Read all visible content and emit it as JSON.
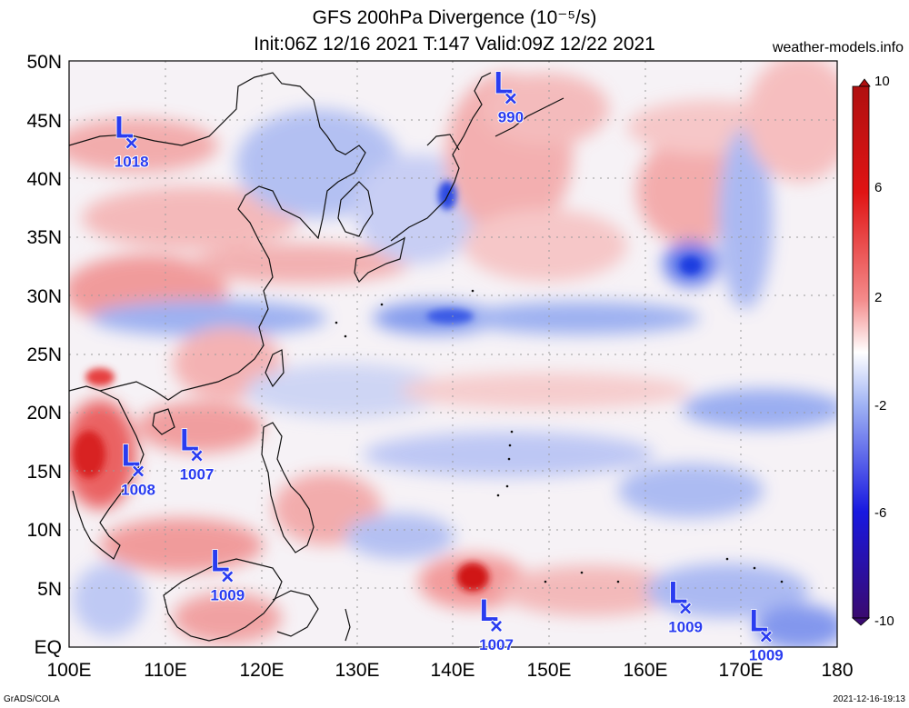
{
  "title": {
    "line1": "GFS 200hPa Divergence (10⁻⁵/s)",
    "line2": "Init:06Z 12/16 2021 T:147 Valid:09Z 12/22 2021",
    "site": "weather-models.info"
  },
  "footer": {
    "left": "GrADS/COLA",
    "right": "2021-12-16-19:13"
  },
  "map": {
    "lon_range": [
      100,
      180
    ],
    "lat_range": [
      0,
      50
    ],
    "lat_labels": [
      "EQ",
      "5N",
      "10N",
      "15N",
      "20N",
      "25N",
      "30N",
      "35N",
      "40N",
      "45N",
      "50N"
    ],
    "lon_labels": [
      "100E",
      "110E",
      "120E",
      "130E",
      "140E",
      "150E",
      "160E",
      "170E",
      "180"
    ],
    "lows": [
      {
        "lon": 106.5,
        "lat": 43.0,
        "pressure": "1018"
      },
      {
        "lon": 146.0,
        "lat": 46.8,
        "pressure": "990"
      },
      {
        "lon": 113.3,
        "lat": 16.3,
        "pressure": "1007"
      },
      {
        "lon": 107.2,
        "lat": 15.0,
        "pressure": "1008"
      },
      {
        "lon": 116.5,
        "lat": 6.0,
        "pressure": "1009"
      },
      {
        "lon": 144.5,
        "lat": 1.8,
        "pressure": "1007"
      },
      {
        "lon": 164.2,
        "lat": 3.3,
        "pressure": "1009"
      },
      {
        "lon": 172.6,
        "lat": 0.9,
        "pressure": "1009"
      }
    ],
    "low_symbol": "L",
    "low_marker": "×",
    "low_color": "#2a3cf0"
  },
  "colorbar": {
    "labels": [
      "10",
      "6",
      "2",
      "-2",
      "-6",
      "-10"
    ],
    "colors": [
      "#3a0a70",
      "#1c1cd6",
      "#4a6cf0",
      "#9fb2f4",
      "#e4e8fb",
      "#ffffff",
      "#fbe0e0",
      "#f4a0a0",
      "#ef5050",
      "#d81c1c",
      "#a01010"
    ]
  }
}
